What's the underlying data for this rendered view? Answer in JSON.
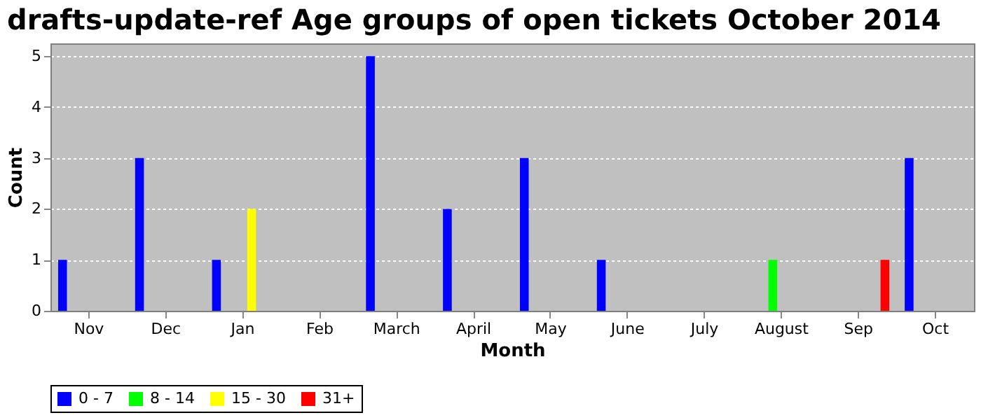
{
  "chart_data": {
    "type": "bar",
    "title": "drafts-update-ref Age groups of open tickets October 2014",
    "xlabel": "Month",
    "ylabel": "Count",
    "categories": [
      "Nov",
      "Dec",
      "Jan",
      "Feb",
      "March",
      "April",
      "May",
      "June",
      "July",
      "August",
      "Sep",
      "Oct"
    ],
    "series": [
      {
        "name": "0 - 7",
        "color": "#0000ff",
        "values": [
          1,
          3,
          1,
          0,
          5,
          2,
          3,
          1,
          0,
          0,
          0,
          3
        ]
      },
      {
        "name": "8 - 14",
        "color": "#00ff00",
        "values": [
          0,
          0,
          0,
          0,
          0,
          0,
          0,
          0,
          0,
          1,
          0,
          0
        ]
      },
      {
        "name": "15 - 30",
        "color": "#ffff00",
        "values": [
          0,
          0,
          2,
          0,
          0,
          0,
          0,
          0,
          0,
          0,
          0,
          0
        ]
      },
      {
        "name": "31+",
        "color": "#ff0000",
        "values": [
          0,
          0,
          0,
          0,
          0,
          0,
          0,
          0,
          0,
          0,
          1,
          0
        ]
      }
    ],
    "ylim": [
      0,
      5.25
    ],
    "yticks": [
      0,
      1,
      2,
      3,
      4,
      5
    ],
    "grid": "y",
    "legend": "bottom"
  }
}
